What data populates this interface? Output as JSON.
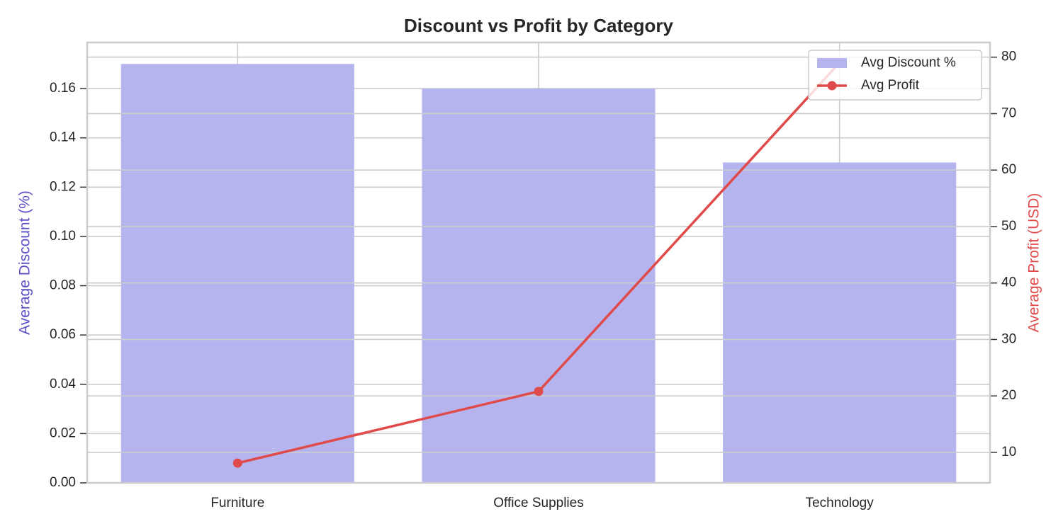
{
  "chart_data": {
    "type": "combo",
    "title": "Discount vs Profit by Category",
    "categories": [
      "Furniture",
      "Office Supplies",
      "Technology"
    ],
    "ylabel": "Average Discount (%)",
    "ylabel_color": "#5b4fc4",
    "y2label": "Average Profit (USD)",
    "y2label_color": "#e04a4a",
    "ylim": [
      0,
      0.1787
    ],
    "yticks": [
      {
        "value": 0,
        "label": "0.00"
      },
      0.02,
      0.04,
      0.06,
      0.08,
      {
        "value": 0.1,
        "label": "0.10"
      },
      0.12,
      0.14,
      0.16
    ],
    "y2lim": [
      4.6,
      82.6
    ],
    "y2ticks": [
      10,
      20,
      30,
      40,
      50,
      60,
      70,
      80
    ],
    "grid": true,
    "legend": "upper right",
    "series": [
      {
        "name": "Avg Discount %",
        "type": "bar",
        "color": "#b6b4ee",
        "values": [
          0.17,
          0.16,
          0.13
        ]
      },
      {
        "name": "Avg Profit",
        "type": "line",
        "axis": "y2",
        "color": "#e04a4a",
        "values": [
          8.1,
          20.8,
          79.0
        ]
      }
    ]
  }
}
